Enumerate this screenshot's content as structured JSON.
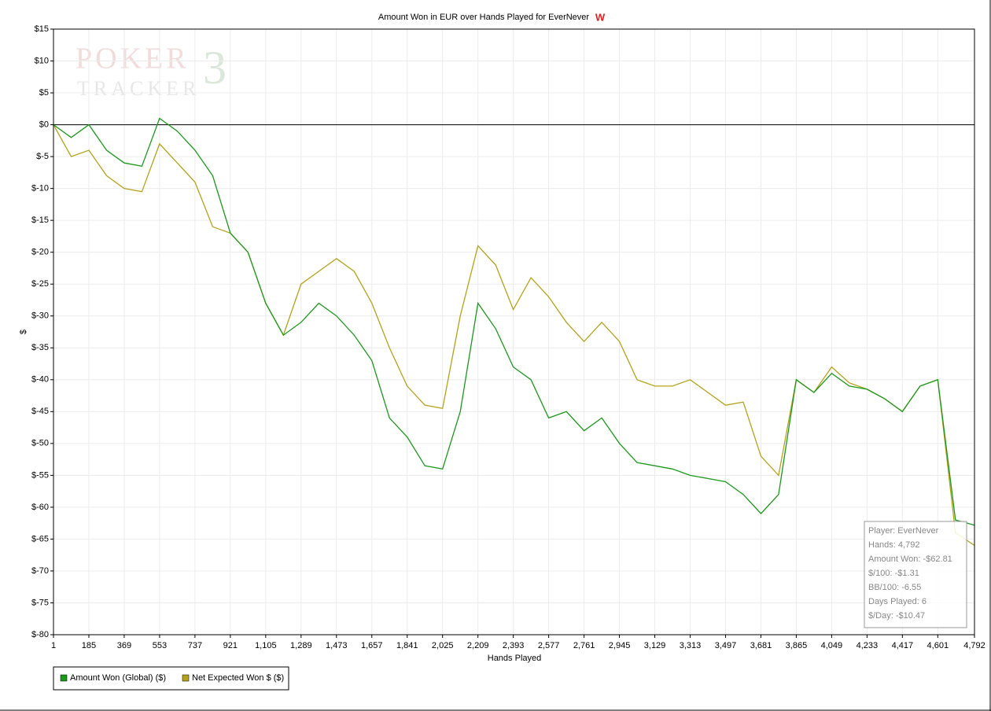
{
  "chart_data": {
    "type": "line",
    "title": "Amount Won in EUR over Hands Played for EverNever",
    "xlabel": "Hands Played",
    "ylabel": "$",
    "logo": [
      "POKER",
      "TRACKER",
      "3"
    ],
    "x": [
      1,
      93,
      185,
      277,
      369,
      461,
      553,
      645,
      737,
      829,
      921,
      1013,
      1105,
      1197,
      1289,
      1381,
      1473,
      1565,
      1657,
      1749,
      1841,
      1933,
      2025,
      2117,
      2209,
      2301,
      2393,
      2485,
      2577,
      2669,
      2761,
      2853,
      2945,
      3037,
      3129,
      3221,
      3313,
      3405,
      3497,
      3589,
      3681,
      3773,
      3865,
      3957,
      4049,
      4141,
      4233,
      4325,
      4417,
      4509,
      4601,
      4693,
      4792
    ],
    "series": [
      {
        "name": "Amount Won (Global) ($)",
        "color": "#1a9a1a",
        "values": [
          0,
          -2,
          0,
          -4,
          -6,
          -6.5,
          1,
          -1,
          -4,
          -8,
          -17,
          -20,
          -28,
          -33,
          -31,
          -28,
          -30,
          -33,
          -37,
          -46,
          -49,
          -53.5,
          -54,
          -45,
          -28,
          -32,
          -38,
          -40,
          -46,
          -45,
          -48,
          -46,
          -50,
          -53,
          -53.5,
          -54,
          -55,
          -55.5,
          -56,
          -58,
          -61,
          -58,
          -40,
          -42,
          -39,
          -41,
          -41.5,
          -43,
          -45,
          -41,
          -40,
          -62,
          -62.81
        ]
      },
      {
        "name": "Net Expected Won $ ($)",
        "color": "#b5a21a",
        "values": [
          0,
          -5,
          -4,
          -8,
          -10,
          -10.5,
          -3,
          -6,
          -9,
          -16,
          -17,
          -20,
          -28,
          -33,
          -25,
          -23,
          -21,
          -23,
          -28,
          -35,
          -41,
          -44,
          -44.5,
          -30,
          -19,
          -22,
          -29,
          -24,
          -27,
          -31,
          -34,
          -31,
          -34,
          -40,
          -41,
          -41,
          -40,
          -42,
          -44,
          -43.5,
          -52,
          -55,
          -40,
          -42,
          -38,
          -40.5,
          -41.5,
          -43,
          -45,
          -41,
          -40,
          -64,
          -66
        ]
      }
    ],
    "xlim": [
      1,
      4792
    ],
    "xticks": [
      1,
      185,
      369,
      553,
      737,
      921,
      {
        "value": 1105,
        "label": "1,105"
      },
      {
        "value": 1289,
        "label": "1,289"
      },
      {
        "value": 1473,
        "label": "1,473"
      },
      {
        "value": 1657,
        "label": "1,657"
      },
      {
        "value": 1841,
        "label": "1,841"
      },
      {
        "value": 2025,
        "label": "2,025"
      },
      {
        "value": 2209,
        "label": "2,209"
      },
      {
        "value": 2393,
        "label": "2,393"
      },
      {
        "value": 2577,
        "label": "2,577"
      },
      {
        "value": 2761,
        "label": "2,761"
      },
      {
        "value": 2945,
        "label": "2,945"
      },
      {
        "value": 3129,
        "label": "3,129"
      },
      {
        "value": 3313,
        "label": "3,313"
      },
      {
        "value": 3497,
        "label": "3,497"
      },
      {
        "value": 3681,
        "label": "3,681"
      },
      {
        "value": 3865,
        "label": "3,865"
      },
      {
        "value": 4049,
        "label": "4,049"
      },
      {
        "value": 4233,
        "label": "4,233"
      },
      {
        "value": 4417,
        "label": "4,417"
      },
      {
        "value": 4601,
        "label": "4,601"
      },
      {
        "value": 4792,
        "label": "4,792"
      }
    ],
    "ylim": [
      -80,
      15
    ],
    "yticks": [
      {
        "value": 15,
        "label": "$15"
      },
      {
        "value": 10,
        "label": "$10"
      },
      {
        "value": 5,
        "label": "$5"
      },
      {
        "value": 0,
        "label": "$0"
      },
      {
        "value": -5,
        "label": "$-5"
      },
      {
        "value": -10,
        "label": "$-10"
      },
      {
        "value": -15,
        "label": "$-15"
      },
      {
        "value": -20,
        "label": "$-20"
      },
      {
        "value": -25,
        "label": "$-25"
      },
      {
        "value": -30,
        "label": "$-30"
      },
      {
        "value": -35,
        "label": "$-35"
      },
      {
        "value": -40,
        "label": "$-40"
      },
      {
        "value": -45,
        "label": "$-45"
      },
      {
        "value": -50,
        "label": "$-50"
      },
      {
        "value": -55,
        "label": "$-55"
      },
      {
        "value": -60,
        "label": "$-60"
      },
      {
        "value": -65,
        "label": "$-65"
      },
      {
        "value": -70,
        "label": "$-70"
      },
      {
        "value": -75,
        "label": "$-75"
      },
      {
        "value": -80,
        "label": "$-80"
      }
    ],
    "grid": true,
    "info_box": [
      "Player: EverNever",
      "Hands: 4,792",
      "Amount Won: -$62.81",
      "$/100: -$1.31",
      "BB/100: -6.55",
      "Days Played: 6",
      "$/Day: -$10.47"
    ]
  }
}
